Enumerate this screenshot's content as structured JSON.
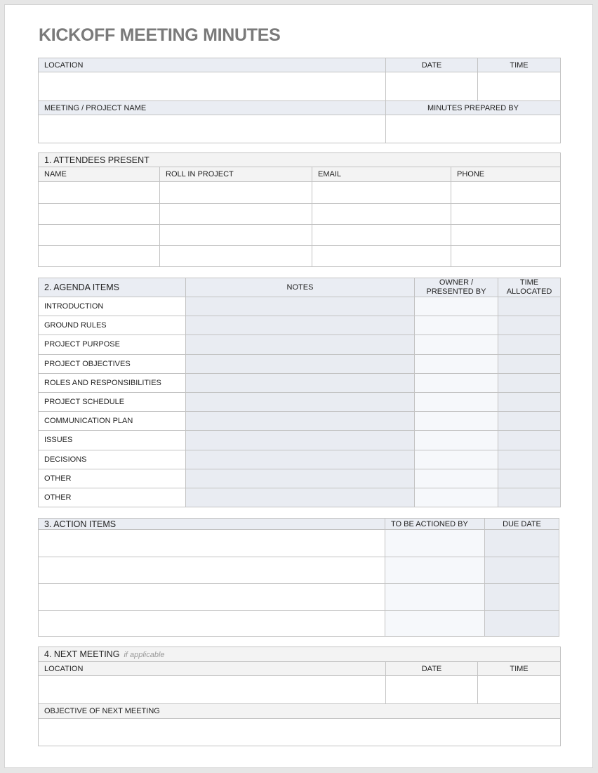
{
  "title": "KICKOFF MEETING MINUTES",
  "meeting_info": {
    "location": "LOCATION",
    "date": "DATE",
    "time": "TIME",
    "project_name": "MEETING / PROJECT NAME",
    "prepared_by": "MINUTES PREPARED BY"
  },
  "attendees": {
    "title": "1. ATTENDEES PRESENT",
    "columns": [
      "NAME",
      "ROLL IN PROJECT",
      "EMAIL",
      "PHONE"
    ]
  },
  "agenda": {
    "title": "2. AGENDA ITEMS",
    "notes": "NOTES",
    "owner_line1": "OWNER /",
    "owner_line2": "PRESENTED BY",
    "time_line1": "TIME",
    "time_line2": "ALLOCATED",
    "items": [
      "INTRODUCTION",
      "GROUND RULES",
      "PROJECT PURPOSE",
      "PROJECT OBJECTIVES",
      "ROLES AND RESPONSIBILITIES",
      "PROJECT SCHEDULE",
      "COMMUNICATION PLAN",
      "ISSUES",
      "DECISIONS",
      "OTHER",
      "OTHER"
    ]
  },
  "action_items": {
    "title": "3. ACTION ITEMS",
    "actioned_by": "TO BE ACTIONED BY",
    "due_date": "DUE DATE"
  },
  "next_meeting": {
    "title": "4. NEXT MEETING",
    "note": "if applicable",
    "location": "LOCATION",
    "date": "DATE",
    "time": "TIME",
    "objective": "OBJECTIVE OF NEXT MEETING"
  }
}
